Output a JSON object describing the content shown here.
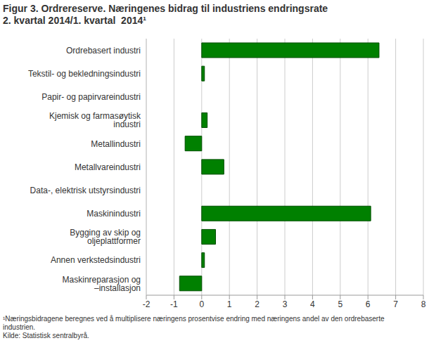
{
  "chart_data": {
    "type": "bar",
    "orientation": "horizontal",
    "title": [
      "Figur 3. Ordrereserve. Næringenes bidrag til industriens endringsrate",
      "2. kvartal 2014/1. kvartal  2014¹"
    ],
    "categories": [
      "Ordrebasert industri",
      "Tekstil- og bekledningsindustri",
      "Papir- og papirvareindustri",
      "Kjemisk og farmasøytisk industri",
      "Metallindustri",
      "Metallvareindustri",
      "Data-, elektrisk utstyrsindustri",
      "Maskinindustri",
      "Bygging av skip og oljeplattformer",
      "Annen verkstedsindustri",
      "Maskinreparasjon og –installasjon"
    ],
    "values": [
      6.4,
      0.1,
      0,
      0.2,
      -0.6,
      0.8,
      0,
      6.1,
      0.5,
      0.1,
      -0.8
    ],
    "color": "#008000",
    "xlim": [
      -2,
      8
    ],
    "xticks": [
      -2,
      -1,
      0,
      1,
      2,
      3,
      4,
      5,
      6,
      7,
      8
    ],
    "grid": true,
    "notes": [
      "¹Næringsbidragene beregnes ved å multiplisere næringens prosentvise endring med næringens andel av den ordrebaserte industrien.",
      "Kilde: Statistisk sentralbyrå."
    ]
  }
}
